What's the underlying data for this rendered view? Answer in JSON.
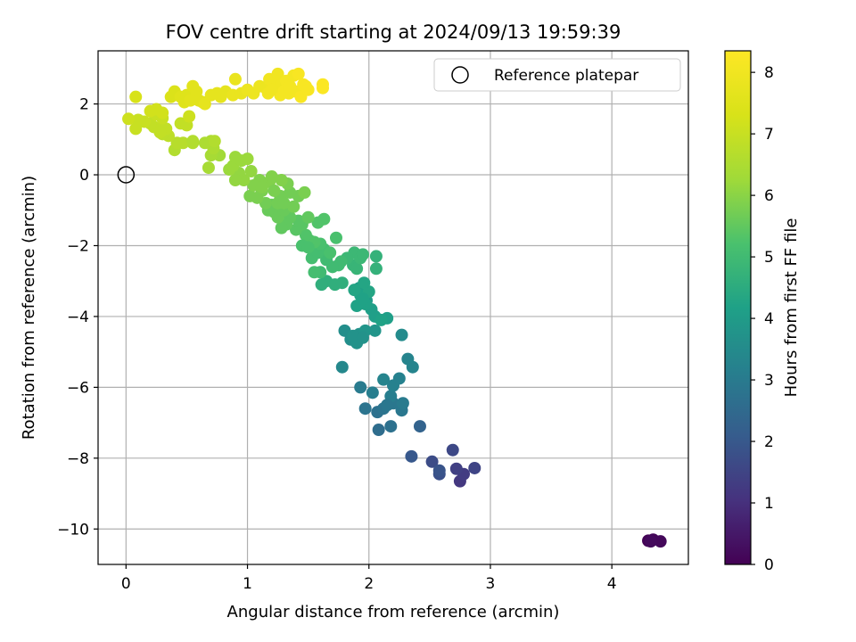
{
  "chart_data": {
    "type": "scatter",
    "title": "FOV centre drift starting at 2024/09/13 19:59:39",
    "xlabel": "Angular distance from reference (arcmin)",
    "ylabel": "Rotation from reference (arcmin)",
    "xlim": [
      -0.23,
      4.63
    ],
    "ylim": [
      -11.0,
      3.5
    ],
    "xticks": [
      0,
      1,
      2,
      3,
      4
    ],
    "yticks": [
      -10,
      -8,
      -6,
      -4,
      -2,
      0,
      2
    ],
    "grid": true,
    "legend": {
      "placement": "top-right",
      "entries": [
        "Reference platepar"
      ]
    },
    "colorbar": {
      "label": "Hours from first FF file",
      "ticks": [
        0,
        1,
        2,
        3,
        4,
        5,
        6,
        7,
        8
      ],
      "range": [
        0,
        8.35
      ],
      "colormap": "viridis"
    },
    "reference_point": {
      "x": 0,
      "y": 0
    },
    "points": [
      {
        "x": 4.3,
        "y": -10.33,
        "c": 0.05
      },
      {
        "x": 4.34,
        "y": -10.3,
        "c": 0.1
      },
      {
        "x": 4.4,
        "y": -10.35,
        "c": 0.15
      },
      {
        "x": 4.32,
        "y": -10.35,
        "c": 0.2
      },
      {
        "x": 2.75,
        "y": -8.65,
        "c": 1.2
      },
      {
        "x": 2.78,
        "y": -8.45,
        "c": 1.3
      },
      {
        "x": 2.72,
        "y": -8.3,
        "c": 1.4
      },
      {
        "x": 2.87,
        "y": -8.28,
        "c": 1.5
      },
      {
        "x": 2.69,
        "y": -7.77,
        "c": 1.6
      },
      {
        "x": 2.52,
        "y": -8.1,
        "c": 1.7
      },
      {
        "x": 2.58,
        "y": -8.45,
        "c": 1.8
      },
      {
        "x": 2.58,
        "y": -8.35,
        "c": 1.9
      },
      {
        "x": 2.35,
        "y": -7.95,
        "c": 2.0
      },
      {
        "x": 2.42,
        "y": -7.1,
        "c": 2.3
      },
      {
        "x": 2.08,
        "y": -7.2,
        "c": 2.6
      },
      {
        "x": 2.18,
        "y": -7.1,
        "c": 2.7
      },
      {
        "x": 2.07,
        "y": -6.7,
        "c": 2.7
      },
      {
        "x": 2.12,
        "y": -6.6,
        "c": 2.8
      },
      {
        "x": 2.2,
        "y": -6.45,
        "c": 2.9
      },
      {
        "x": 2.27,
        "y": -6.65,
        "c": 2.9
      },
      {
        "x": 2.28,
        "y": -6.45,
        "c": 3.0
      },
      {
        "x": 1.97,
        "y": -6.6,
        "c": 2.8
      },
      {
        "x": 1.93,
        "y": -6.0,
        "c": 3.0
      },
      {
        "x": 2.03,
        "y": -6.15,
        "c": 3.1
      },
      {
        "x": 2.18,
        "y": -6.25,
        "c": 3.1
      },
      {
        "x": 2.2,
        "y": -5.95,
        "c": 3.2
      },
      {
        "x": 2.25,
        "y": -5.75,
        "c": 3.2
      },
      {
        "x": 2.12,
        "y": -5.78,
        "c": 3.3
      },
      {
        "x": 2.15,
        "y": -6.5,
        "c": 2.9
      },
      {
        "x": 2.32,
        "y": -5.2,
        "c": 3.3
      },
      {
        "x": 2.36,
        "y": -5.43,
        "c": 3.3
      },
      {
        "x": 1.78,
        "y": -5.43,
        "c": 3.4
      },
      {
        "x": 2.27,
        "y": -4.52,
        "c": 3.5
      },
      {
        "x": 1.8,
        "y": -4.4,
        "c": 3.6
      },
      {
        "x": 1.85,
        "y": -4.65,
        "c": 3.6
      },
      {
        "x": 1.9,
        "y": -4.75,
        "c": 3.7
      },
      {
        "x": 1.92,
        "y": -4.5,
        "c": 3.7
      },
      {
        "x": 1.97,
        "y": -4.4,
        "c": 3.8
      },
      {
        "x": 2.05,
        "y": -4.4,
        "c": 3.8
      },
      {
        "x": 1.87,
        "y": -4.55,
        "c": 3.7
      },
      {
        "x": 1.95,
        "y": -4.6,
        "c": 3.7
      },
      {
        "x": 1.92,
        "y": -3.2,
        "c": 4.0
      },
      {
        "x": 1.98,
        "y": -3.55,
        "c": 4.0
      },
      {
        "x": 2.02,
        "y": -3.8,
        "c": 4.1
      },
      {
        "x": 2.05,
        "y": -4.0,
        "c": 4.1
      },
      {
        "x": 2.15,
        "y": -4.05,
        "c": 4.1
      },
      {
        "x": 2.1,
        "y": -4.1,
        "c": 4.2
      },
      {
        "x": 1.93,
        "y": -3.4,
        "c": 4.2
      },
      {
        "x": 1.97,
        "y": -3.65,
        "c": 4.2
      },
      {
        "x": 2.0,
        "y": -3.3,
        "c": 4.3
      },
      {
        "x": 1.96,
        "y": -3.05,
        "c": 4.3
      },
      {
        "x": 1.9,
        "y": -3.7,
        "c": 4.2
      },
      {
        "x": 1.88,
        "y": -3.25,
        "c": 4.3
      },
      {
        "x": 1.95,
        "y": -3.5,
        "c": 4.2
      },
      {
        "x": 1.65,
        "y": -3.0,
        "c": 4.6
      },
      {
        "x": 1.72,
        "y": -3.1,
        "c": 4.6
      },
      {
        "x": 1.78,
        "y": -3.05,
        "c": 4.6
      },
      {
        "x": 1.61,
        "y": -3.1,
        "c": 4.6
      },
      {
        "x": 2.06,
        "y": -2.65,
        "c": 4.7
      },
      {
        "x": 2.06,
        "y": -2.3,
        "c": 4.7
      },
      {
        "x": 1.87,
        "y": -2.55,
        "c": 4.8
      },
      {
        "x": 1.9,
        "y": -2.65,
        "c": 4.8
      },
      {
        "x": 1.88,
        "y": -2.2,
        "c": 4.9
      },
      {
        "x": 1.93,
        "y": -2.35,
        "c": 4.9
      },
      {
        "x": 1.95,
        "y": -2.25,
        "c": 4.9
      },
      {
        "x": 1.82,
        "y": -2.35,
        "c": 4.9
      },
      {
        "x": 1.77,
        "y": -2.45,
        "c": 5.0
      },
      {
        "x": 1.75,
        "y": -2.55,
        "c": 5.0
      },
      {
        "x": 1.7,
        "y": -2.6,
        "c": 5.0
      },
      {
        "x": 1.65,
        "y": -2.4,
        "c": 5.0
      },
      {
        "x": 1.6,
        "y": -2.75,
        "c": 5.0
      },
      {
        "x": 1.55,
        "y": -2.75,
        "c": 5.1
      },
      {
        "x": 1.53,
        "y": -2.35,
        "c": 5.1
      },
      {
        "x": 1.58,
        "y": -2.2,
        "c": 5.1
      },
      {
        "x": 1.63,
        "y": -2.1,
        "c": 5.1
      },
      {
        "x": 1.68,
        "y": -2.2,
        "c": 5.2
      },
      {
        "x": 1.73,
        "y": -1.78,
        "c": 5.2
      },
      {
        "x": 1.6,
        "y": -1.95,
        "c": 5.2
      },
      {
        "x": 1.55,
        "y": -1.9,
        "c": 5.3
      },
      {
        "x": 1.51,
        "y": -1.85,
        "c": 5.3
      },
      {
        "x": 1.48,
        "y": -1.7,
        "c": 5.3
      },
      {
        "x": 1.63,
        "y": -1.25,
        "c": 5.3
      },
      {
        "x": 1.58,
        "y": -1.35,
        "c": 5.3
      },
      {
        "x": 1.45,
        "y": -2.0,
        "c": 5.2
      },
      {
        "x": 1.5,
        "y": -2.05,
        "c": 5.2
      },
      {
        "x": 1.45,
        "y": -1.4,
        "c": 5.4
      },
      {
        "x": 1.4,
        "y": -1.55,
        "c": 5.4
      },
      {
        "x": 1.42,
        "y": -1.3,
        "c": 5.4
      },
      {
        "x": 1.5,
        "y": -1.2,
        "c": 5.5
      },
      {
        "x": 1.35,
        "y": -1.2,
        "c": 5.5
      },
      {
        "x": 1.32,
        "y": -1.4,
        "c": 5.5
      },
      {
        "x": 1.28,
        "y": -1.5,
        "c": 5.5
      },
      {
        "x": 1.25,
        "y": -1.2,
        "c": 5.6
      },
      {
        "x": 1.22,
        "y": -1.05,
        "c": 5.6
      },
      {
        "x": 1.2,
        "y": -0.85,
        "c": 5.6
      },
      {
        "x": 1.17,
        "y": -1.0,
        "c": 5.6
      },
      {
        "x": 1.3,
        "y": -1.0,
        "c": 5.6
      },
      {
        "x": 1.38,
        "y": -0.9,
        "c": 5.7
      },
      {
        "x": 1.42,
        "y": -0.6,
        "c": 5.7
      },
      {
        "x": 1.35,
        "y": -0.5,
        "c": 5.7
      },
      {
        "x": 1.27,
        "y": -0.6,
        "c": 5.7
      },
      {
        "x": 1.25,
        "y": -0.8,
        "c": 5.7
      },
      {
        "x": 1.47,
        "y": -0.5,
        "c": 5.8
      },
      {
        "x": 1.33,
        "y": -0.25,
        "c": 5.8
      },
      {
        "x": 1.3,
        "y": -0.8,
        "c": 5.7
      },
      {
        "x": 1.15,
        "y": -0.8,
        "c": 5.7
      },
      {
        "x": 1.12,
        "y": -0.45,
        "c": 5.8
      },
      {
        "x": 1.08,
        "y": -0.65,
        "c": 5.8
      },
      {
        "x": 1.02,
        "y": -0.6,
        "c": 5.8
      },
      {
        "x": 1.1,
        "y": -0.15,
        "c": 5.9
      },
      {
        "x": 1.18,
        "y": -0.2,
        "c": 5.9
      },
      {
        "x": 1.22,
        "y": -0.45,
        "c": 5.8
      },
      {
        "x": 1.05,
        "y": -0.3,
        "c": 5.9
      },
      {
        "x": 1.2,
        "y": -0.05,
        "c": 5.9
      },
      {
        "x": 1.28,
        "y": -0.15,
        "c": 5.9
      },
      {
        "x": 1.12,
        "y": -0.35,
        "c": 5.9
      },
      {
        "x": 0.97,
        "y": -0.15,
        "c": 6.1
      },
      {
        "x": 0.93,
        "y": 0.05,
        "c": 6.1
      },
      {
        "x": 0.9,
        "y": -0.15,
        "c": 6.1
      },
      {
        "x": 0.85,
        "y": 0.15,
        "c": 6.2
      },
      {
        "x": 0.88,
        "y": 0.25,
        "c": 6.2
      },
      {
        "x": 1.03,
        "y": 0.1,
        "c": 6.1
      },
      {
        "x": 0.95,
        "y": 0.4,
        "c": 6.2
      },
      {
        "x": 1.0,
        "y": 0.45,
        "c": 6.2
      },
      {
        "x": 0.9,
        "y": 0.5,
        "c": 6.2
      },
      {
        "x": 0.77,
        "y": 0.55,
        "c": 6.3
      },
      {
        "x": 0.7,
        "y": 0.55,
        "c": 6.4
      },
      {
        "x": 0.68,
        "y": 0.2,
        "c": 6.4
      },
      {
        "x": 0.72,
        "y": 0.75,
        "c": 6.5
      },
      {
        "x": 0.65,
        "y": 0.9,
        "c": 6.5
      },
      {
        "x": 0.7,
        "y": 0.95,
        "c": 6.5
      },
      {
        "x": 0.73,
        "y": 0.95,
        "c": 6.6
      },
      {
        "x": 0.55,
        "y": 0.9,
        "c": 6.6
      },
      {
        "x": 0.47,
        "y": 0.9,
        "c": 6.7
      },
      {
        "x": 0.4,
        "y": 0.7,
        "c": 6.6
      },
      {
        "x": 0.42,
        "y": 0.9,
        "c": 6.7
      },
      {
        "x": 0.35,
        "y": 1.1,
        "c": 6.8
      },
      {
        "x": 0.3,
        "y": 1.15,
        "c": 6.8
      },
      {
        "x": 0.28,
        "y": 1.3,
        "c": 6.9
      },
      {
        "x": 0.33,
        "y": 1.3,
        "c": 6.9
      },
      {
        "x": 0.23,
        "y": 1.35,
        "c": 6.9
      },
      {
        "x": 0.2,
        "y": 1.45,
        "c": 6.9
      },
      {
        "x": 0.15,
        "y": 1.5,
        "c": 7.0
      },
      {
        "x": 0.08,
        "y": 1.3,
        "c": 7.0
      },
      {
        "x": 0.1,
        "y": 1.55,
        "c": 7.0
      },
      {
        "x": 0.02,
        "y": 1.58,
        "c": 7.1
      },
      {
        "x": 0.25,
        "y": 1.7,
        "c": 7.0
      },
      {
        "x": 0.3,
        "y": 1.6,
        "c": 7.0
      },
      {
        "x": 0.45,
        "y": 1.45,
        "c": 6.9
      },
      {
        "x": 0.5,
        "y": 1.4,
        "c": 6.9
      },
      {
        "x": 0.52,
        "y": 1.65,
        "c": 7.1
      },
      {
        "x": 0.55,
        "y": 0.95,
        "c": 6.6
      },
      {
        "x": 0.28,
        "y": 1.2,
        "c": 6.9
      },
      {
        "x": 0.2,
        "y": 1.8,
        "c": 7.2
      },
      {
        "x": 0.25,
        "y": 1.85,
        "c": 7.2
      },
      {
        "x": 0.3,
        "y": 1.75,
        "c": 7.2
      },
      {
        "x": 0.08,
        "y": 2.2,
        "c": 7.3
      },
      {
        "x": 0.37,
        "y": 2.2,
        "c": 7.4
      },
      {
        "x": 0.4,
        "y": 2.35,
        "c": 7.4
      },
      {
        "x": 0.45,
        "y": 2.2,
        "c": 7.5
      },
      {
        "x": 0.48,
        "y": 2.05,
        "c": 7.5
      },
      {
        "x": 0.5,
        "y": 2.25,
        "c": 7.5
      },
      {
        "x": 0.53,
        "y": 2.1,
        "c": 7.6
      },
      {
        "x": 0.55,
        "y": 2.5,
        "c": 7.6
      },
      {
        "x": 0.58,
        "y": 2.35,
        "c": 7.6
      },
      {
        "x": 0.6,
        "y": 2.1,
        "c": 7.6
      },
      {
        "x": 0.63,
        "y": 2.05,
        "c": 7.6
      },
      {
        "x": 0.65,
        "y": 2.0,
        "c": 7.7
      },
      {
        "x": 0.7,
        "y": 2.25,
        "c": 7.7
      },
      {
        "x": 0.75,
        "y": 2.3,
        "c": 7.7
      },
      {
        "x": 0.78,
        "y": 2.2,
        "c": 7.7
      },
      {
        "x": 0.82,
        "y": 2.35,
        "c": 7.7
      },
      {
        "x": 0.88,
        "y": 2.25,
        "c": 7.8
      },
      {
        "x": 0.9,
        "y": 2.7,
        "c": 7.8
      },
      {
        "x": 0.95,
        "y": 2.3,
        "c": 7.8
      },
      {
        "x": 1.0,
        "y": 2.4,
        "c": 7.9
      },
      {
        "x": 1.05,
        "y": 2.3,
        "c": 7.9
      },
      {
        "x": 1.1,
        "y": 2.5,
        "c": 7.9
      },
      {
        "x": 1.15,
        "y": 2.45,
        "c": 7.9
      },
      {
        "x": 1.18,
        "y": 2.7,
        "c": 8.0
      },
      {
        "x": 1.22,
        "y": 2.6,
        "c": 8.0
      },
      {
        "x": 1.25,
        "y": 2.85,
        "c": 8.0
      },
      {
        "x": 1.28,
        "y": 2.55,
        "c": 8.0
      },
      {
        "x": 1.3,
        "y": 2.35,
        "c": 8.1
      },
      {
        "x": 1.32,
        "y": 2.65,
        "c": 8.1
      },
      {
        "x": 1.35,
        "y": 2.5,
        "c": 8.1
      },
      {
        "x": 1.38,
        "y": 2.8,
        "c": 8.1
      },
      {
        "x": 1.4,
        "y": 2.35,
        "c": 8.1
      },
      {
        "x": 1.42,
        "y": 2.85,
        "c": 8.2
      },
      {
        "x": 1.44,
        "y": 2.2,
        "c": 8.2
      },
      {
        "x": 1.46,
        "y": 2.55,
        "c": 8.2
      },
      {
        "x": 1.48,
        "y": 2.5,
        "c": 8.2
      },
      {
        "x": 1.5,
        "y": 2.4,
        "c": 8.2
      },
      {
        "x": 1.62,
        "y": 2.55,
        "c": 8.3
      },
      {
        "x": 1.62,
        "y": 2.45,
        "c": 8.3
      },
      {
        "x": 1.17,
        "y": 2.3,
        "c": 8.0
      },
      {
        "x": 1.27,
        "y": 2.25,
        "c": 8.1
      },
      {
        "x": 1.34,
        "y": 2.3,
        "c": 8.1
      },
      {
        "x": 1.2,
        "y": 2.4,
        "c": 8.0
      }
    ]
  }
}
